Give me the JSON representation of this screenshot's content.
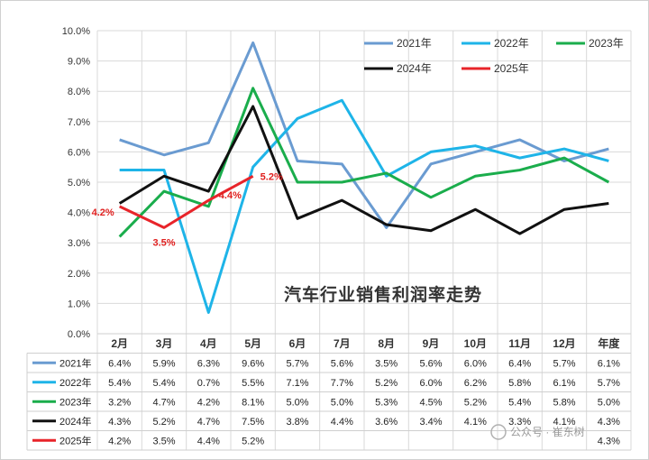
{
  "chart_data": {
    "type": "line",
    "title": "汽车行业销售利润率走势",
    "categories": [
      "2月",
      "3月",
      "4月",
      "5月",
      "6月",
      "7月",
      "8月",
      "9月",
      "10月",
      "11月",
      "12月",
      "年度"
    ],
    "y_ticks": [
      "0.0%",
      "1.0%",
      "2.0%",
      "3.0%",
      "4.0%",
      "5.0%",
      "6.0%",
      "7.0%",
      "8.0%",
      "9.0%",
      "10.0%"
    ],
    "ylim": [
      0,
      10
    ],
    "grid": true,
    "legend_position": "top-right",
    "series": [
      {
        "name": "2021年",
        "color": "#6a9bd1",
        "values": [
          6.4,
          5.9,
          6.3,
          9.6,
          5.7,
          5.6,
          3.5,
          5.6,
          6.0,
          6.4,
          5.7,
          6.1
        ],
        "table": [
          "6.4%",
          "5.9%",
          "6.3%",
          "9.6%",
          "5.7%",
          "5.6%",
          "3.5%",
          "5.6%",
          "6.0%",
          "6.4%",
          "5.7%",
          "6.1%"
        ]
      },
      {
        "name": "2022年",
        "color": "#1eb4e8",
        "values": [
          5.4,
          5.4,
          0.7,
          5.5,
          7.1,
          7.7,
          5.2,
          6.0,
          6.2,
          5.8,
          6.1,
          5.7
        ],
        "table": [
          "5.4%",
          "5.4%",
          "0.7%",
          "5.5%",
          "7.1%",
          "7.7%",
          "5.2%",
          "6.0%",
          "6.2%",
          "5.8%",
          "6.1%",
          "5.7%"
        ]
      },
      {
        "name": "2023年",
        "color": "#1aad4c",
        "values": [
          3.2,
          4.7,
          4.2,
          8.1,
          5.0,
          5.0,
          5.3,
          4.5,
          5.2,
          5.4,
          5.8,
          5.0
        ],
        "table": [
          "3.2%",
          "4.7%",
          "4.2%",
          "8.1%",
          "5.0%",
          "5.0%",
          "5.3%",
          "4.5%",
          "5.2%",
          "5.4%",
          "5.8%",
          "5.0%"
        ]
      },
      {
        "name": "2024年",
        "color": "#111111",
        "values": [
          4.3,
          5.2,
          4.7,
          7.5,
          3.8,
          4.4,
          3.6,
          3.4,
          4.1,
          3.3,
          4.1,
          4.3
        ],
        "table": [
          "4.3%",
          "5.2%",
          "4.7%",
          "7.5%",
          "3.8%",
          "4.4%",
          "3.6%",
          "3.4%",
          "4.1%",
          "3.3%",
          "4.1%",
          "4.3%"
        ]
      },
      {
        "name": "2025年",
        "color": "#e8242a",
        "values": [
          4.2,
          3.5,
          4.4,
          5.2,
          null,
          null,
          null,
          null,
          null,
          null,
          null,
          4.3
        ],
        "table": [
          "4.2%",
          "3.5%",
          "4.4%",
          "5.2%",
          "",
          "",
          "",
          "",
          "",
          "",
          "",
          "4.3%"
        ],
        "plot_points": 4
      }
    ],
    "annotations": [
      {
        "text": "4.2%",
        "cat": 0,
        "value": 4.2
      },
      {
        "text": "3.5%",
        "cat": 1,
        "value": 3.5
      },
      {
        "text": "4.4%",
        "cat": 2,
        "value": 4.4
      },
      {
        "text": "5.2%",
        "cat": 3,
        "value": 5.2
      },
      {
        "text": "4.3%",
        "cat": 11,
        "value": 4.3
      }
    ]
  },
  "watermark": "公众号 · 崔东树"
}
